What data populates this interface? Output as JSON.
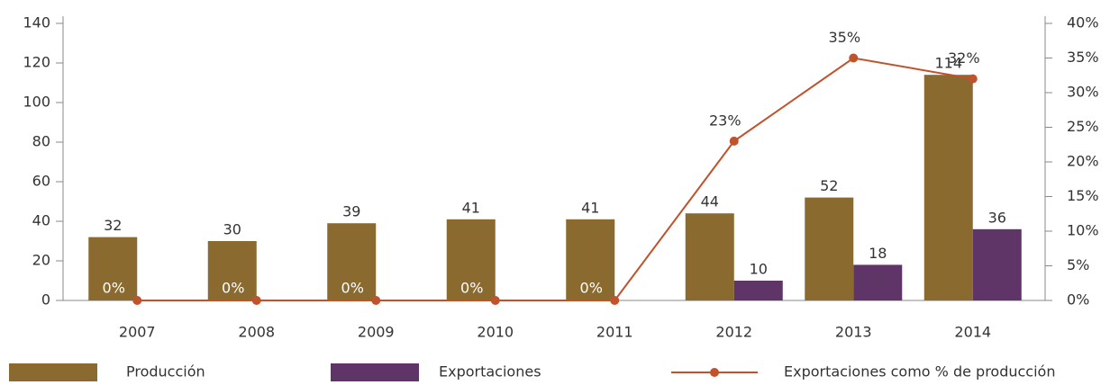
{
  "chart_data": {
    "type": "bar",
    "categories": [
      "2007",
      "2008",
      "2009",
      "2010",
      "2011",
      "2012",
      "2013",
      "2014"
    ],
    "series": [
      {
        "name": "Producción",
        "type": "bar",
        "color": "#8b6a2f",
        "values": [
          32,
          30,
          39,
          41,
          41,
          44,
          52,
          114
        ]
      },
      {
        "name": "Exportaciones",
        "type": "bar",
        "color": "#5e3566",
        "values": [
          null,
          null,
          null,
          null,
          null,
          10,
          18,
          36
        ]
      },
      {
        "name": "Exportaciones como % de producción",
        "type": "line",
        "axis": "y2",
        "color": "#c0522c",
        "values": [
          0,
          0,
          0,
          0,
          0,
          23,
          35,
          32
        ],
        "value_labels": [
          "0%",
          "0%",
          "0%",
          "0%",
          "0%",
          "23%",
          "35%",
          "32%"
        ]
      }
    ],
    "ylim": [
      0,
      140
    ],
    "yticks": [
      0,
      20,
      40,
      60,
      80,
      100,
      120,
      140
    ],
    "y2lim": [
      0,
      40
    ],
    "y2ticks": [
      {
        "value": 0,
        "label": "0%"
      },
      {
        "value": 5,
        "label": "5%"
      },
      {
        "value": 10,
        "label": "10%"
      },
      {
        "value": 15,
        "label": "15%"
      },
      {
        "value": 20,
        "label": "20%"
      },
      {
        "value": 25,
        "label": "25%"
      },
      {
        "value": 30,
        "label": "30%"
      },
      {
        "value": 35,
        "label": "35%"
      },
      {
        "value": 40,
        "label": "40%"
      }
    ],
    "legend": "bottom"
  }
}
